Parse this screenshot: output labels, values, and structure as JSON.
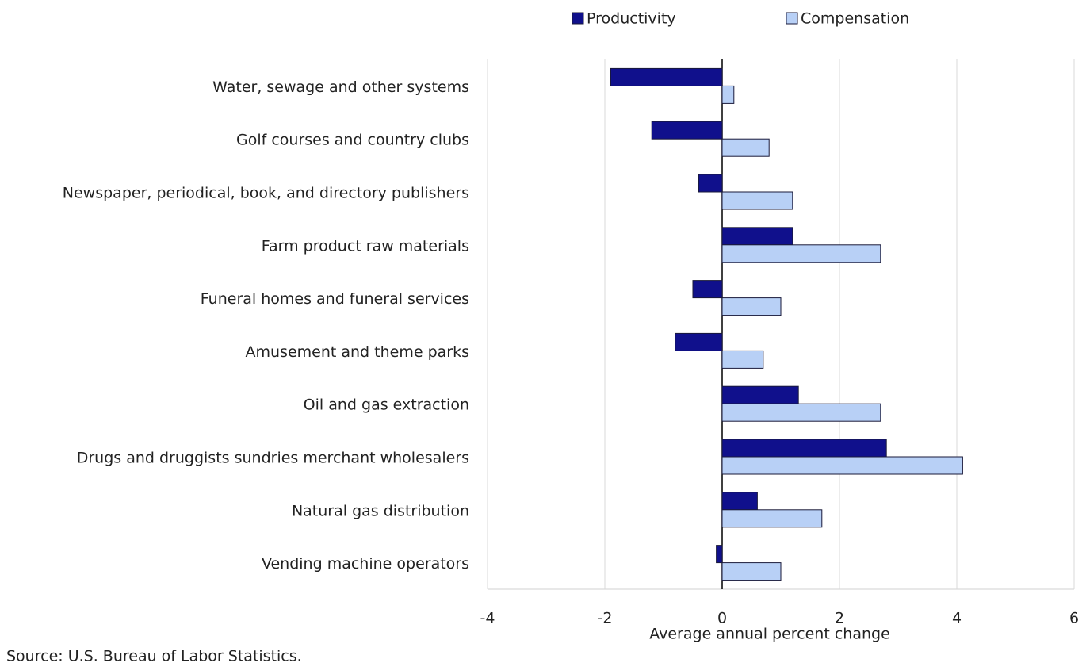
{
  "chart_data": {
    "type": "hbar",
    "categories": [
      "Water, sewage and other systems",
      "Golf courses and country clubs",
      "Newspaper, periodical, book, and directory publishers",
      "Farm product raw materials",
      "Funeral homes and funeral services",
      "Amusement and theme parks",
      "Oil and gas extraction",
      "Drugs and druggists sundries merchant wholesalers",
      "Natural gas distribution",
      "Vending machine operators"
    ],
    "series": [
      {
        "name": "Productivity",
        "color": "#10108c",
        "values": [
          -1.9,
          -1.2,
          -0.4,
          1.2,
          -0.5,
          -0.8,
          1.3,
          2.8,
          0.6,
          -0.1
        ]
      },
      {
        "name": "Compensation",
        "color": "#b8d0f6",
        "values": [
          0.2,
          0.8,
          1.2,
          2.7,
          1.0,
          0.7,
          2.7,
          4.1,
          1.7,
          1.0
        ]
      }
    ],
    "xlim": [
      -4,
      6
    ],
    "xticks": [
      -4,
      -2,
      0,
      2,
      4,
      6
    ],
    "x_label": "Average annual percent change",
    "source": "Source: U.S. Bureau of Labor Statistics.",
    "grid": true,
    "legend": "top"
  }
}
